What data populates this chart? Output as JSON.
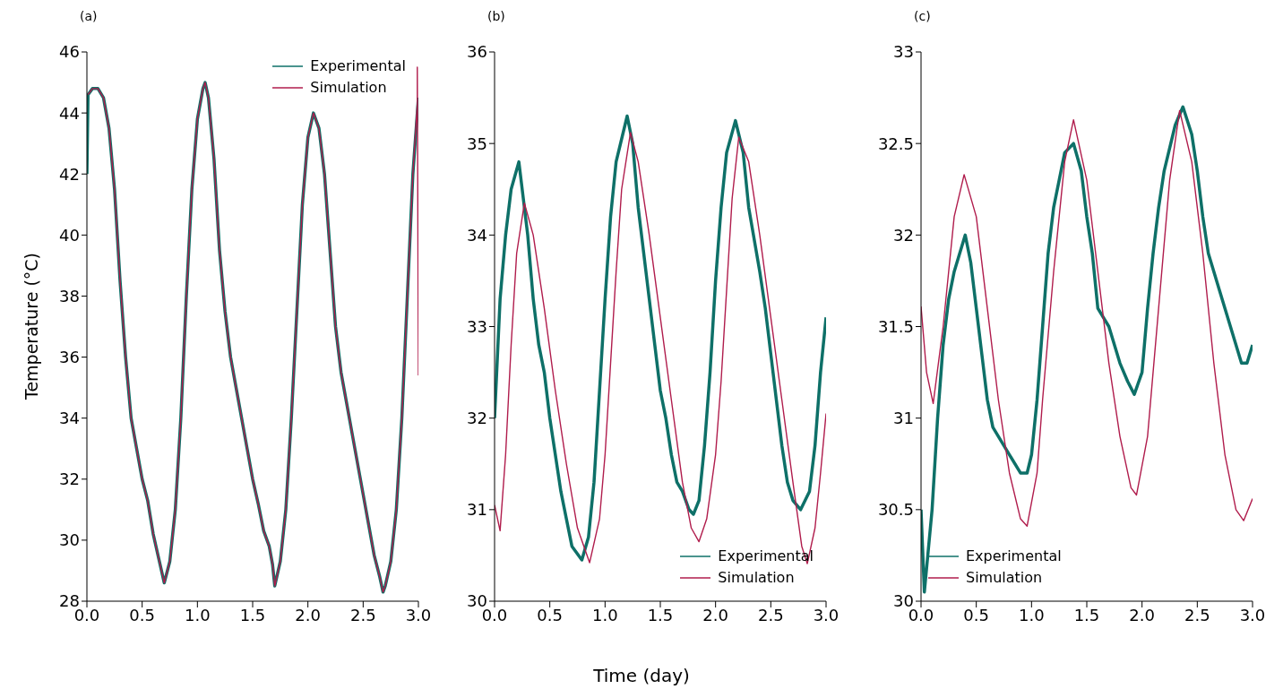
{
  "chart_data": [
    {
      "type": "line",
      "title": "(a)",
      "ylabel": "Temperature (°C)",
      "xlim": [
        0,
        3
      ],
      "xticks": [
        {
          "value": 0,
          "label": "0.0"
        },
        0.5,
        {
          "value": 1,
          "label": "1.0"
        },
        1.5,
        {
          "value": 2,
          "label": "2.0"
        },
        2.5,
        {
          "value": 3,
          "label": "3.0"
        }
      ],
      "ylim": [
        28,
        46
      ],
      "yticks": [
        28,
        30,
        32,
        34,
        36,
        38,
        40,
        42,
        44,
        46
      ],
      "legend": "top right",
      "series": [
        {
          "name": "Experimental",
          "color": "#0e7068",
          "x": [
            0,
            0.01,
            0.05,
            0.1,
            0.15,
            0.2,
            0.25,
            0.3,
            0.35,
            0.4,
            0.45,
            0.5,
            0.55,
            0.6,
            0.65,
            0.7,
            0.75,
            0.8,
            0.85,
            0.9,
            0.95,
            1.0,
            1.05,
            1.07,
            1.1,
            1.15,
            1.2,
            1.25,
            1.3,
            1.35,
            1.4,
            1.45,
            1.5,
            1.55,
            1.6,
            1.65,
            1.68,
            1.7,
            1.75,
            1.8,
            1.85,
            1.9,
            1.95,
            2.0,
            2.05,
            2.1,
            2.15,
            2.2,
            2.25,
            2.3,
            2.35,
            2.4,
            2.45,
            2.5,
            2.55,
            2.6,
            2.65,
            2.68,
            2.7,
            2.75,
            2.8,
            2.85,
            2.9,
            2.95,
            3.0
          ],
          "values": [
            42,
            44.6,
            44.8,
            44.8,
            44.5,
            43.5,
            41.5,
            38.5,
            36,
            34,
            33,
            32,
            31.3,
            30.2,
            29.4,
            28.6,
            29.3,
            31,
            34,
            38,
            41.5,
            43.8,
            44.8,
            45,
            44.5,
            42.5,
            39.5,
            37.5,
            36,
            35,
            34,
            33,
            32,
            31.2,
            30.3,
            29.8,
            29.2,
            28.5,
            29.3,
            31,
            34,
            37.5,
            41,
            43.2,
            44,
            43.5,
            42,
            39.5,
            37,
            35.5,
            34.5,
            33.5,
            32.5,
            31.5,
            30.5,
            29.5,
            28.8,
            28.3,
            28.5,
            29.3,
            31,
            34,
            38,
            42,
            44.5
          ]
        },
        {
          "name": "Simulation",
          "color": "#b01c4c",
          "x": [
            0.01,
            0.05,
            0.1,
            0.15,
            0.2,
            0.25,
            0.3,
            0.35,
            0.4,
            0.45,
            0.5,
            0.55,
            0.6,
            0.65,
            0.7,
            0.75,
            0.8,
            0.85,
            0.9,
            0.95,
            1.0,
            1.05,
            1.07,
            1.1,
            1.15,
            1.2,
            1.25,
            1.3,
            1.35,
            1.4,
            1.45,
            1.5,
            1.55,
            1.6,
            1.65,
            1.68,
            1.7,
            1.75,
            1.8,
            1.85,
            1.9,
            1.95,
            2.0,
            2.05,
            2.1,
            2.15,
            2.2,
            2.25,
            2.3,
            2.35,
            2.4,
            2.45,
            2.5,
            2.55,
            2.6,
            2.65,
            2.68,
            2.7,
            2.75,
            2.8,
            2.85,
            2.9,
            2.95,
            2.99,
            2.99,
            3.0
          ],
          "values": [
            44.6,
            44.8,
            44.8,
            44.5,
            43.5,
            41.5,
            38.5,
            36,
            34,
            33,
            32,
            31.3,
            30.2,
            29.4,
            28.6,
            29.3,
            31,
            34,
            38,
            41.5,
            43.8,
            44.8,
            45,
            44.5,
            42.5,
            39.5,
            37.5,
            36,
            35,
            34,
            33,
            32,
            31.2,
            30.3,
            29.8,
            29.2,
            28.5,
            29.3,
            31,
            34,
            37.5,
            41,
            43.2,
            44,
            43.5,
            42,
            39.5,
            37,
            35.5,
            34.5,
            33.5,
            32.5,
            31.5,
            30.5,
            29.5,
            28.8,
            28.3,
            28.5,
            29.3,
            31,
            34,
            38,
            42,
            44.3,
            45.5,
            35.4
          ]
        }
      ]
    },
    {
      "type": "line",
      "title": "(b)",
      "xlabel": "Time (day)",
      "xlim": [
        0,
        3
      ],
      "xticks": [
        {
          "value": 0,
          "label": "0.0"
        },
        0.5,
        {
          "value": 1,
          "label": "1.0"
        },
        1.5,
        {
          "value": 2,
          "label": "2.0"
        },
        2.5,
        {
          "value": 3,
          "label": "3.0"
        }
      ],
      "ylim": [
        30,
        36
      ],
      "yticks": [
        30,
        31,
        32,
        33,
        34,
        35,
        36
      ],
      "legend": "bottom right",
      "series": [
        {
          "name": "Experimental",
          "color": "#0e7068",
          "x": [
            0,
            0.05,
            0.1,
            0.15,
            0.22,
            0.3,
            0.35,
            0.4,
            0.45,
            0.5,
            0.55,
            0.6,
            0.65,
            0.7,
            0.79,
            0.85,
            0.9,
            0.95,
            1.0,
            1.05,
            1.1,
            1.2,
            1.25,
            1.3,
            1.35,
            1.4,
            1.45,
            1.5,
            1.55,
            1.6,
            1.65,
            1.7,
            1.76,
            1.8,
            1.85,
            1.9,
            1.95,
            2.0,
            2.05,
            2.1,
            2.18,
            2.25,
            2.3,
            2.4,
            2.45,
            2.5,
            2.55,
            2.6,
            2.65,
            2.7,
            2.77,
            2.85,
            2.9,
            2.95,
            3.0
          ],
          "values": [
            32.0,
            33.3,
            34.0,
            34.5,
            34.8,
            34.0,
            33.3,
            32.8,
            32.5,
            32.0,
            31.6,
            31.2,
            30.9,
            30.6,
            30.45,
            30.7,
            31.3,
            32.3,
            33.3,
            34.2,
            34.8,
            35.3,
            35.0,
            34.3,
            33.8,
            33.3,
            32.8,
            32.3,
            32.0,
            31.6,
            31.3,
            31.2,
            31.0,
            30.95,
            31.1,
            31.7,
            32.5,
            33.5,
            34.3,
            34.9,
            35.25,
            34.9,
            34.3,
            33.6,
            33.2,
            32.7,
            32.2,
            31.7,
            31.3,
            31.1,
            31.0,
            31.2,
            31.7,
            32.5,
            33.1
          ]
        },
        {
          "name": "Simulation",
          "color": "#b01c4c",
          "x": [
            0,
            0.05,
            0.1,
            0.15,
            0.2,
            0.27,
            0.35,
            0.45,
            0.55,
            0.65,
            0.75,
            0.86,
            0.95,
            1.0,
            1.05,
            1.1,
            1.15,
            1.23,
            1.3,
            1.4,
            1.5,
            1.6,
            1.7,
            1.78,
            1.85,
            1.92,
            2.0,
            2.05,
            2.1,
            2.15,
            2.21,
            2.3,
            2.4,
            2.5,
            2.6,
            2.7,
            2.78,
            2.83,
            2.9,
            2.95,
            3.0
          ],
          "values": [
            31.05,
            30.77,
            31.6,
            32.8,
            33.8,
            34.35,
            34.0,
            33.2,
            32.3,
            31.5,
            30.8,
            30.42,
            30.9,
            31.6,
            32.6,
            33.6,
            34.5,
            35.12,
            34.8,
            34.0,
            33.1,
            32.2,
            31.3,
            30.8,
            30.65,
            30.9,
            31.6,
            32.4,
            33.4,
            34.4,
            35.07,
            34.8,
            34.0,
            33.1,
            32.2,
            31.3,
            30.6,
            30.41,
            30.8,
            31.4,
            32.05
          ]
        }
      ]
    },
    {
      "type": "line",
      "title": "(c)",
      "xlim": [
        0,
        3
      ],
      "xticks": [
        {
          "value": 0,
          "label": "0.0"
        },
        0.5,
        {
          "value": 1,
          "label": "1.0"
        },
        1.5,
        {
          "value": 2,
          "label": "2.0"
        },
        2.5,
        {
          "value": 3,
          "label": "3.0"
        }
      ],
      "ylim": [
        30,
        33
      ],
      "yticks": [
        30,
        30.5,
        31,
        31.5,
        32,
        32.5,
        33
      ],
      "legend": "bottom left",
      "series": [
        {
          "name": "Experimental",
          "color": "#0e7068",
          "x": [
            0,
            0.03,
            0.1,
            0.15,
            0.2,
            0.25,
            0.3,
            0.4,
            0.45,
            0.5,
            0.55,
            0.6,
            0.65,
            0.7,
            0.8,
            0.9,
            0.96,
            1.0,
            1.05,
            1.1,
            1.15,
            1.2,
            1.25,
            1.3,
            1.38,
            1.45,
            1.5,
            1.55,
            1.6,
            1.7,
            1.8,
            1.87,
            1.93,
            2.0,
            2.05,
            2.1,
            2.15,
            2.2,
            2.3,
            2.37,
            2.45,
            2.5,
            2.55,
            2.6,
            2.7,
            2.8,
            2.9,
            2.95,
            3.0
          ],
          "values": [
            30.5,
            30.05,
            30.5,
            31.0,
            31.4,
            31.65,
            31.8,
            32.0,
            31.85,
            31.6,
            31.35,
            31.1,
            30.95,
            30.9,
            30.8,
            30.7,
            30.7,
            30.8,
            31.1,
            31.5,
            31.9,
            32.15,
            32.3,
            32.45,
            32.5,
            32.35,
            32.1,
            31.9,
            31.6,
            31.5,
            31.3,
            31.2,
            31.13,
            31.25,
            31.6,
            31.9,
            32.15,
            32.35,
            32.6,
            32.7,
            32.55,
            32.35,
            32.1,
            31.9,
            31.7,
            31.5,
            31.3,
            31.3,
            31.4
          ]
        },
        {
          "name": "Simulation",
          "color": "#b01c4c",
          "x": [
            0,
            0.05,
            0.11,
            0.2,
            0.3,
            0.39,
            0.5,
            0.6,
            0.7,
            0.8,
            0.9,
            0.96,
            1.05,
            1.1,
            1.2,
            1.3,
            1.38,
            1.5,
            1.6,
            1.7,
            1.8,
            1.9,
            1.95,
            2.05,
            2.15,
            2.25,
            2.34,
            2.45,
            2.55,
            2.65,
            2.75,
            2.85,
            2.92,
            3.0
          ],
          "values": [
            31.61,
            31.25,
            31.08,
            31.5,
            32.1,
            32.33,
            32.1,
            31.6,
            31.1,
            30.7,
            30.45,
            30.41,
            30.7,
            31.1,
            31.8,
            32.4,
            32.63,
            32.3,
            31.8,
            31.3,
            30.9,
            30.62,
            30.58,
            30.9,
            31.6,
            32.3,
            32.68,
            32.4,
            31.9,
            31.3,
            30.8,
            30.5,
            30.44,
            30.56
          ]
        }
      ]
    }
  ]
}
